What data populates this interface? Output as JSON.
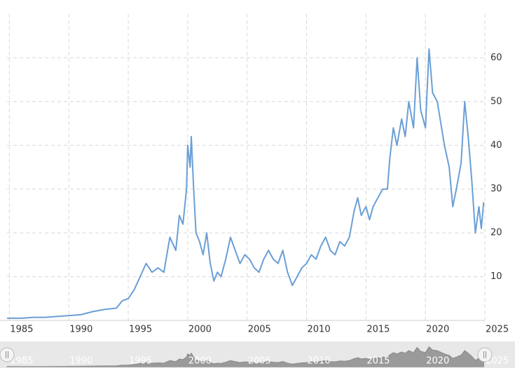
{
  "chart_data": {
    "type": "line",
    "x": [
      1984.8,
      1986,
      1987,
      1988,
      1989,
      1990,
      1991,
      1992,
      1993,
      1994,
      1994.5,
      1995,
      1995.5,
      1996,
      1996.5,
      1997,
      1997.5,
      1998,
      1998.5,
      1999,
      1999.3,
      1999.6,
      1999.9,
      2000.0,
      2000.2,
      2000.3,
      2000.5,
      2000.7,
      2001,
      2001.3,
      2001.6,
      2001.9,
      2002.2,
      2002.5,
      2002.8,
      2003.2,
      2003.6,
      2004,
      2004.4,
      2004.8,
      2005.2,
      2005.6,
      2006,
      2006.4,
      2006.8,
      2007.2,
      2007.6,
      2008,
      2008.4,
      2008.8,
      2009.2,
      2009.6,
      2010,
      2010.4,
      2010.8,
      2011.2,
      2011.6,
      2012,
      2012.4,
      2012.8,
      2013.2,
      2013.6,
      2014,
      2014.3,
      2014.6,
      2015,
      2015.3,
      2015.6,
      2016,
      2016.4,
      2016.8,
      2017,
      2017.3,
      2017.6,
      2018,
      2018.3,
      2018.6,
      2019,
      2019.3,
      2019.6,
      2020,
      2020.3,
      2020.6,
      2021,
      2021.3,
      2021.6,
      2022,
      2022.3,
      2022.6,
      2023,
      2023.3,
      2023.6,
      2023.9,
      2024.2,
      2024.5,
      2024.7,
      2024.9
    ],
    "values": [
      0.5,
      0.5,
      0.7,
      0.7,
      0.9,
      1.1,
      1.3,
      2,
      2.5,
      2.8,
      4.5,
      5,
      7,
      10,
      13,
      11,
      12,
      11,
      19,
      16,
      24,
      22,
      30,
      40,
      35,
      42,
      30,
      20,
      18,
      15,
      20,
      13,
      9,
      11,
      10,
      14,
      19,
      16,
      13,
      15,
      14,
      12,
      11,
      14,
      16,
      14,
      13,
      16,
      11,
      8,
      10,
      12,
      13,
      15,
      14,
      17,
      19,
      16,
      15,
      18,
      17,
      19,
      25,
      28,
      24,
      26,
      23,
      26,
      28,
      30,
      30,
      37,
      44,
      40,
      46,
      42,
      50,
      44,
      60,
      48,
      44,
      62,
      52,
      50,
      45,
      40,
      35,
      26,
      30,
      36,
      50,
      42,
      32,
      20,
      26,
      21,
      27
    ],
    "color": "#6a9fd6",
    "xlim": [
      1984.8,
      2025
    ],
    "xticks": [
      1985,
      1990,
      1995,
      2000,
      2005,
      2010,
      2015,
      2020,
      2025
    ],
    "ylim": [
      0,
      70
    ],
    "yticks": [
      10,
      20,
      30,
      40,
      50,
      60
    ],
    "grid": true
  }
}
